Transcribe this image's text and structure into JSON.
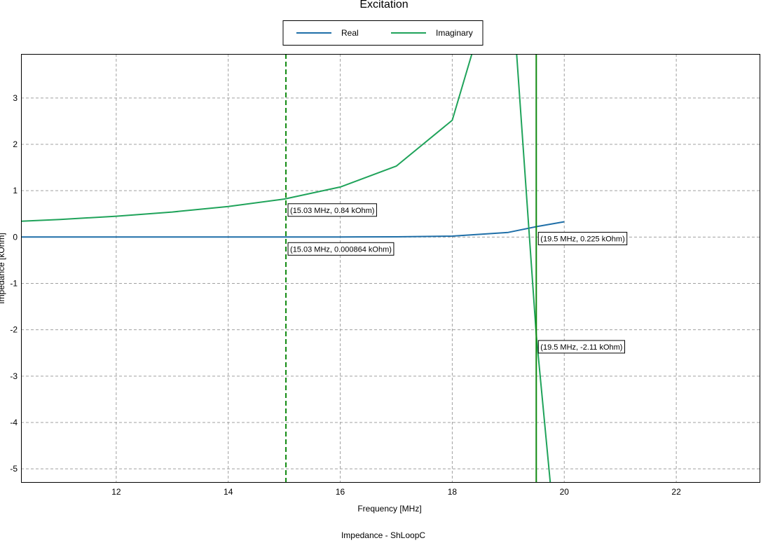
{
  "footer_caption": "Impedance - ShLoopC",
  "colors": {
    "real": "#1f6fa8",
    "imaginary": "#1fa35a",
    "marker": "#118a11",
    "grid": "#a0a0a0",
    "axis": "#000000"
  },
  "chart_data": {
    "type": "line",
    "title": "Excitation",
    "xlabel": "Frequency [MHz]",
    "ylabel": "Impedance [kOhm]",
    "xlim": [
      10.3,
      23.5
    ],
    "ylim": [
      -5.3,
      3.95
    ],
    "grid": true,
    "legend_position": "top-center",
    "x_ticks": [
      12,
      14,
      16,
      18,
      20,
      22
    ],
    "y_ticks": [
      -5,
      -4,
      -3,
      -2,
      -1,
      0,
      1,
      2,
      3
    ],
    "series": [
      {
        "name": "Real",
        "color": "#1f6fa8",
        "x": [
          10.3,
          11,
          12,
          13,
          14,
          15,
          16,
          17,
          18,
          19,
          19.5,
          20
        ],
        "y": [
          0,
          0,
          0,
          0,
          0,
          0.0009,
          0.002,
          0.005,
          0.02,
          0.1,
          0.225,
          0.33
        ]
      },
      {
        "name": "Imaginary",
        "color": "#1fa35a",
        "x": [
          10.3,
          11,
          12,
          13,
          14,
          15,
          16,
          17,
          18,
          18.35,
          19.15,
          19.5,
          19.75
        ],
        "y": [
          0.34,
          0.38,
          0.45,
          0.54,
          0.66,
          0.82,
          1.08,
          1.53,
          2.52,
          3.95,
          3.95,
          -2.11,
          -5.3
        ]
      }
    ],
    "markers": [
      {
        "x": 15.03,
        "style": "dashed",
        "labels": [
          {
            "text": "(15.03 MHz, 0.84 kOhm)",
            "y": 0.84
          },
          {
            "text": "(15.03 MHz, 0.000864 kOhm)",
            "y": 0.000864
          }
        ]
      },
      {
        "x": 19.5,
        "style": "solid",
        "labels": [
          {
            "text": "(19.5 MHz, 0.225 kOhm)",
            "y": 0.225
          },
          {
            "text": "(19.5 MHz, -2.11 kOhm)",
            "y": -2.11
          }
        ]
      }
    ]
  }
}
